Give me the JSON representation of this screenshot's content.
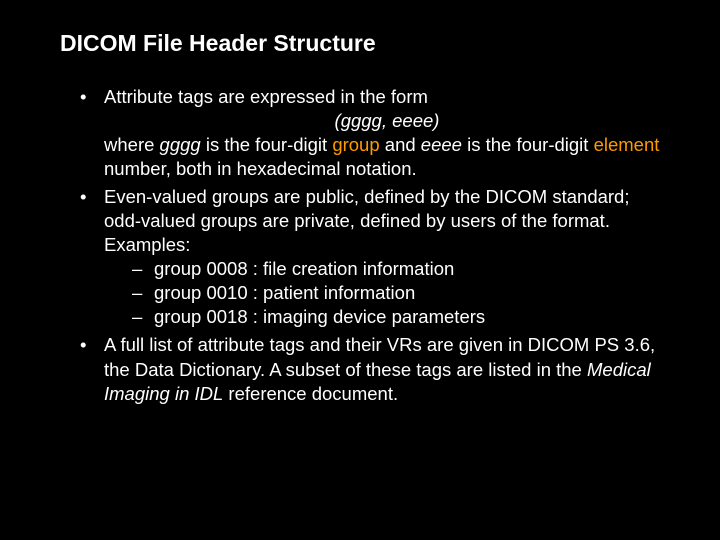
{
  "title": "DICOM File Header Structure",
  "bullet1_a": "Attribute tags are expressed in the form",
  "tag_form": "(gggg, eeee)",
  "bullet1_b_pre": "where ",
  "bullet1_b_gggg": "gggg",
  "bullet1_b_mid1": " is the four-digit ",
  "bullet1_b_group": "group",
  "bullet1_b_mid2": " and ",
  "bullet1_b_eeee": "eeee",
  "bullet1_b_mid3": " is the four-digit ",
  "bullet1_b_element": "element",
  "bullet1_b_end": " number, both in hexadecimal notation.",
  "bullet2": "Even-valued groups are public, defined by the DICOM standard; odd-valued groups are private, defined by users of the format. Examples:",
  "sub1": "group 0008 : file creation information",
  "sub2": "group 0010 : patient information",
  "sub3": "group 0018 : imaging device parameters",
  "bullet3_a": "A full list of attribute tags and their VRs are given in DICOM PS 3.6, the Data Dictionary. A subset of these tags are listed in the ",
  "bullet3_ital": "Medical Imaging in IDL",
  "bullet3_b": " reference document.",
  "colors": {
    "background": "#000000",
    "text": "#ffffff",
    "highlight": "#ff9900"
  },
  "typography": {
    "title_size": 23,
    "body_size": 18.5,
    "font_family": "Arial"
  }
}
